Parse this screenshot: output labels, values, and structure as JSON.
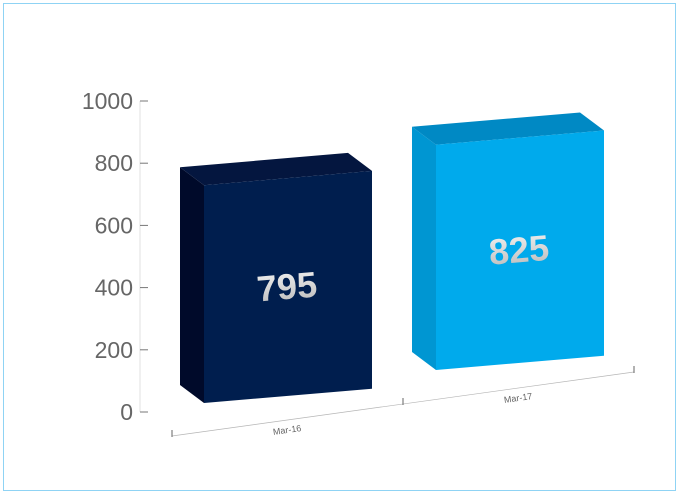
{
  "chart_data": {
    "type": "bar",
    "categories": [
      "Mar-16",
      "Mar-17"
    ],
    "values": [
      795,
      825
    ],
    "data_labels": [
      "795",
      "825"
    ],
    "yticks": [
      "0",
      "200",
      "400",
      "600",
      "800",
      "1000"
    ],
    "ylim": [
      0,
      1000
    ],
    "title": "",
    "xlabel": "",
    "ylabel": "",
    "grid": false,
    "legend": "none",
    "bar_colors": [
      {
        "front": "#001e4e",
        "side": "#000a2a",
        "top": "#04163f"
      },
      {
        "front": "#00aaec",
        "side": "#0096d2",
        "top": "#0089c4"
      }
    ],
    "label_color": "#dcdcdc",
    "axis_color": "#9a9a9a",
    "border_color": "#8fd3f4"
  }
}
